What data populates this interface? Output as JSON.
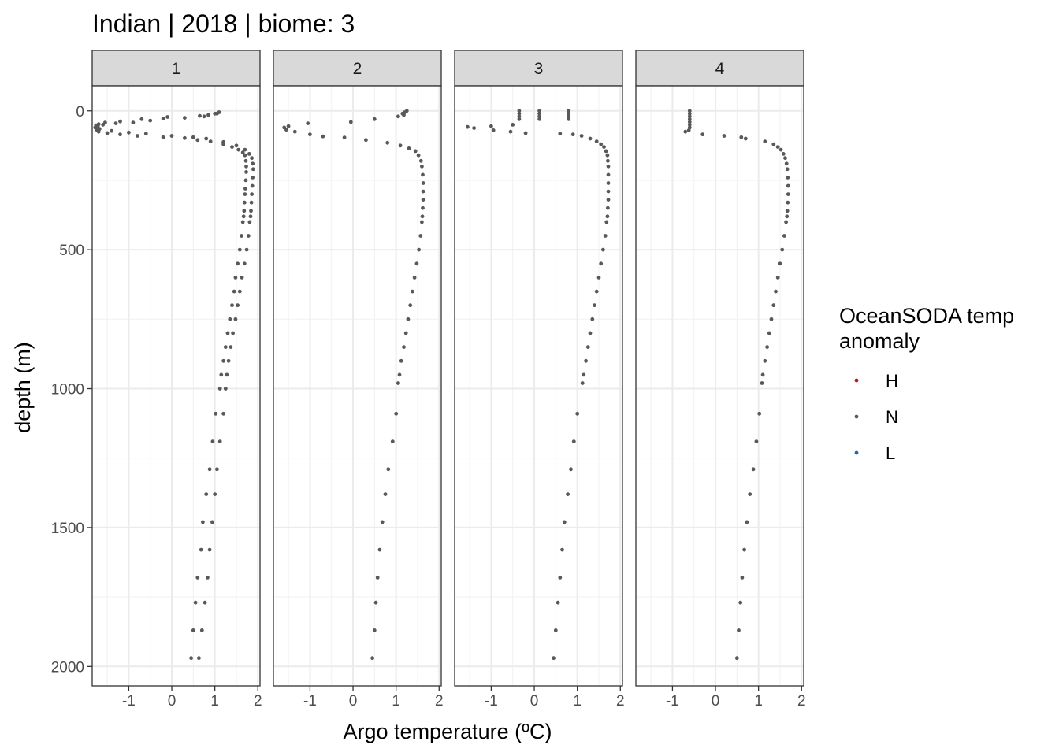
{
  "chart_data": {
    "type": "scatter",
    "title": "Indian | 2018 | biome: 3",
    "xlabel": "Argo temperature (ºC)",
    "ylabel": "depth (m)",
    "xlim": [
      -1.85,
      2.05
    ],
    "ylim": [
      2070,
      -90
    ],
    "y_reversed": true,
    "x_ticks": [
      -1,
      0,
      1,
      2
    ],
    "x_tick_labels": [
      "-1",
      "0",
      "1",
      "2"
    ],
    "y_ticks": [
      0,
      500,
      1000,
      1500,
      2000
    ],
    "y_tick_labels": [
      "0",
      "500",
      "1000",
      "1500",
      "2000"
    ],
    "grid": true,
    "legend": {
      "title_lines": [
        "OceanSODA temp",
        "anomaly"
      ],
      "placement": "right",
      "entries": [
        {
          "label": "H",
          "color": "#b2182b"
        },
        {
          "label": "N",
          "color": "#595959"
        },
        {
          "label": "L",
          "color": "#2166ac"
        }
      ]
    },
    "point_color": "#595959",
    "facets": [
      {
        "label": "1",
        "profiles": [
          [
            [
              1.05,
              10
            ],
            [
              0.85,
              15
            ],
            [
              0.75,
              20
            ],
            [
              0.3,
              25
            ],
            [
              -0.2,
              28
            ],
            [
              -0.5,
              35
            ],
            [
              -0.9,
              42
            ],
            [
              -1.3,
              45
            ],
            [
              -1.6,
              50
            ],
            [
              -1.72,
              55
            ],
            [
              -1.78,
              60
            ],
            [
              -1.75,
              68
            ],
            [
              -1.7,
              75
            ],
            [
              -1.5,
              80
            ],
            [
              -1.2,
              85
            ],
            [
              -0.8,
              90
            ],
            [
              -0.2,
              95
            ],
            [
              0.3,
              98
            ],
            [
              0.6,
              105
            ],
            [
              0.9,
              110
            ],
            [
              1.2,
              120
            ],
            [
              1.4,
              130
            ],
            [
              1.55,
              140
            ],
            [
              1.65,
              150
            ],
            [
              1.7,
              160
            ],
            [
              1.72,
              180
            ],
            [
              1.73,
              200
            ],
            [
              1.73,
              220
            ],
            [
              1.72,
              250
            ],
            [
              1.71,
              280
            ],
            [
              1.7,
              300
            ],
            [
              1.69,
              330
            ],
            [
              1.68,
              360
            ],
            [
              1.67,
              380
            ],
            [
              1.65,
              400
            ],
            [
              1.62,
              450
            ],
            [
              1.58,
              500
            ],
            [
              1.53,
              550
            ],
            [
              1.48,
              600
            ],
            [
              1.45,
              650
            ],
            [
              1.4,
              700
            ],
            [
              1.35,
              750
            ],
            [
              1.3,
              800
            ],
            [
              1.25,
              850
            ],
            [
              1.2,
              900
            ],
            [
              1.15,
              950
            ],
            [
              1.12,
              1000
            ],
            [
              1.02,
              1090
            ],
            [
              0.95,
              1190
            ],
            [
              0.88,
              1290
            ],
            [
              0.8,
              1380
            ],
            [
              0.72,
              1480
            ],
            [
              0.68,
              1580
            ],
            [
              0.6,
              1680
            ],
            [
              0.55,
              1770
            ],
            [
              0.5,
              1870
            ],
            [
              0.45,
              1970
            ]
          ],
          [
            [
              1.1,
              5
            ],
            [
              1.0,
              10
            ],
            [
              0.65,
              18
            ],
            [
              -0.1,
              22
            ],
            [
              -0.7,
              30
            ],
            [
              -1.2,
              38
            ],
            [
              -1.55,
              42
            ],
            [
              -1.7,
              48
            ],
            [
              -1.76,
              52
            ],
            [
              -1.74,
              58
            ],
            [
              -1.68,
              65
            ],
            [
              -1.4,
              72
            ],
            [
              -1.0,
              78
            ],
            [
              -0.6,
              82
            ],
            [
              0.0,
              90
            ],
            [
              0.5,
              95
            ],
            [
              0.8,
              100
            ],
            [
              1.2,
              112
            ],
            [
              1.5,
              125
            ],
            [
              1.7,
              140
            ],
            [
              1.8,
              155
            ],
            [
              1.86,
              170
            ],
            [
              1.88,
              190
            ],
            [
              1.89,
              210
            ],
            [
              1.88,
              240
            ],
            [
              1.87,
              270
            ],
            [
              1.86,
              300
            ],
            [
              1.85,
              330
            ],
            [
              1.84,
              360
            ],
            [
              1.83,
              380
            ],
            [
              1.81,
              400
            ],
            [
              1.78,
              450
            ],
            [
              1.74,
              500
            ],
            [
              1.69,
              550
            ],
            [
              1.63,
              600
            ],
            [
              1.58,
              650
            ],
            [
              1.53,
              700
            ],
            [
              1.48,
              750
            ],
            [
              1.42,
              800
            ],
            [
              1.37,
              850
            ],
            [
              1.32,
              900
            ],
            [
              1.28,
              950
            ],
            [
              1.25,
              1000
            ],
            [
              1.2,
              1090
            ],
            [
              1.12,
              1190
            ],
            [
              1.05,
              1290
            ],
            [
              1.0,
              1380
            ],
            [
              0.94,
              1480
            ],
            [
              0.88,
              1580
            ],
            [
              0.83,
              1680
            ],
            [
              0.77,
              1770
            ],
            [
              0.7,
              1870
            ],
            [
              0.63,
              1970
            ]
          ]
        ]
      },
      {
        "label": "2",
        "profiles": [
          [
            [
              1.25,
              0
            ],
            [
              1.2,
              5
            ],
            [
              1.15,
              10
            ],
            [
              1.18,
              15
            ],
            [
              1.05,
              20
            ],
            [
              0.5,
              30
            ],
            [
              -0.05,
              40
            ],
            [
              -1.05,
              45
            ],
            [
              -1.5,
              55
            ],
            [
              -1.6,
              60
            ],
            [
              -1.55,
              68
            ],
            [
              -1.35,
              75
            ],
            [
              -1.0,
              85
            ],
            [
              -0.7,
              92
            ],
            [
              -0.2,
              96
            ],
            [
              0.3,
              105
            ],
            [
              0.8,
              115
            ],
            [
              1.1,
              125
            ],
            [
              1.3,
              135
            ],
            [
              1.45,
              145
            ],
            [
              1.52,
              160
            ],
            [
              1.58,
              180
            ],
            [
              1.6,
              200
            ],
            [
              1.62,
              230
            ],
            [
              1.63,
              260
            ],
            [
              1.63,
              290
            ],
            [
              1.63,
              320
            ],
            [
              1.62,
              350
            ],
            [
              1.61,
              380
            ],
            [
              1.6,
              400
            ],
            [
              1.57,
              450
            ],
            [
              1.53,
              500
            ],
            [
              1.48,
              550
            ],
            [
              1.43,
              600
            ],
            [
              1.38,
              650
            ],
            [
              1.33,
              700
            ],
            [
              1.28,
              750
            ],
            [
              1.23,
              800
            ],
            [
              1.18,
              850
            ],
            [
              1.12,
              900
            ],
            [
              1.08,
              950
            ],
            [
              1.05,
              980
            ],
            [
              1.0,
              1090
            ],
            [
              0.92,
              1190
            ],
            [
              0.82,
              1290
            ],
            [
              0.75,
              1380
            ],
            [
              0.68,
              1480
            ],
            [
              0.62,
              1580
            ],
            [
              0.57,
              1680
            ],
            [
              0.53,
              1770
            ],
            [
              0.5,
              1870
            ],
            [
              0.45,
              1970
            ]
          ]
        ]
      },
      {
        "label": "3",
        "profiles": [
          [
            [
              -0.35,
              0
            ],
            [
              -0.35,
              10
            ],
            [
              -0.35,
              20
            ],
            [
              -0.35,
              30
            ],
            [
              0.12,
              0
            ],
            [
              0.12,
              10
            ],
            [
              0.12,
              20
            ],
            [
              0.12,
              30
            ],
            [
              0.8,
              0
            ],
            [
              0.8,
              10
            ],
            [
              0.8,
              20
            ],
            [
              0.8,
              30
            ],
            [
              -0.5,
              50
            ],
            [
              -1.0,
              55
            ],
            [
              -1.55,
              58
            ],
            [
              -1.4,
              62
            ],
            [
              -0.95,
              70
            ],
            [
              -0.55,
              75
            ],
            [
              -0.2,
              80
            ],
            [
              0.6,
              82
            ],
            [
              0.9,
              85
            ],
            [
              1.1,
              90
            ],
            [
              1.3,
              100
            ],
            [
              1.45,
              110
            ],
            [
              1.55,
              120
            ],
            [
              1.62,
              130
            ],
            [
              1.67,
              145
            ],
            [
              1.7,
              160
            ],
            [
              1.71,
              180
            ],
            [
              1.72,
              200
            ],
            [
              1.72,
              230
            ],
            [
              1.72,
              260
            ],
            [
              1.72,
              290
            ],
            [
              1.72,
              320
            ],
            [
              1.71,
              350
            ],
            [
              1.7,
              380
            ],
            [
              1.68,
              400
            ],
            [
              1.65,
              450
            ],
            [
              1.6,
              500
            ],
            [
              1.55,
              550
            ],
            [
              1.5,
              600
            ],
            [
              1.45,
              650
            ],
            [
              1.4,
              700
            ],
            [
              1.35,
              750
            ],
            [
              1.3,
              800
            ],
            [
              1.25,
              850
            ],
            [
              1.2,
              900
            ],
            [
              1.15,
              950
            ],
            [
              1.12,
              980
            ],
            [
              1.0,
              1090
            ],
            [
              0.92,
              1190
            ],
            [
              0.85,
              1290
            ],
            [
              0.78,
              1380
            ],
            [
              0.7,
              1480
            ],
            [
              0.65,
              1580
            ],
            [
              0.6,
              1680
            ],
            [
              0.55,
              1770
            ],
            [
              0.5,
              1870
            ],
            [
              0.45,
              1970
            ]
          ]
        ]
      },
      {
        "label": "4",
        "profiles": [
          [
            [
              -0.6,
              0
            ],
            [
              -0.6,
              10
            ],
            [
              -0.6,
              20
            ],
            [
              -0.6,
              30
            ],
            [
              -0.6,
              40
            ],
            [
              -0.6,
              50
            ],
            [
              -0.6,
              60
            ],
            [
              -0.62,
              70
            ],
            [
              -0.7,
              75
            ],
            [
              -0.3,
              85
            ],
            [
              0.2,
              90
            ],
            [
              0.6,
              95
            ],
            [
              0.7,
              100
            ],
            [
              1.15,
              110
            ],
            [
              1.35,
              120
            ],
            [
              1.45,
              130
            ],
            [
              1.52,
              140
            ],
            [
              1.58,
              155
            ],
            [
              1.62,
              170
            ],
            [
              1.65,
              190
            ],
            [
              1.67,
              210
            ],
            [
              1.68,
              240
            ],
            [
              1.69,
              270
            ],
            [
              1.69,
              300
            ],
            [
              1.68,
              330
            ],
            [
              1.67,
              360
            ],
            [
              1.66,
              380
            ],
            [
              1.64,
              400
            ],
            [
              1.6,
              450
            ],
            [
              1.55,
              500
            ],
            [
              1.5,
              550
            ],
            [
              1.45,
              600
            ],
            [
              1.4,
              650
            ],
            [
              1.35,
              700
            ],
            [
              1.3,
              750
            ],
            [
              1.25,
              800
            ],
            [
              1.2,
              850
            ],
            [
              1.15,
              900
            ],
            [
              1.1,
              950
            ],
            [
              1.08,
              980
            ],
            [
              1.02,
              1090
            ],
            [
              0.95,
              1190
            ],
            [
              0.88,
              1290
            ],
            [
              0.8,
              1380
            ],
            [
              0.73,
              1480
            ],
            [
              0.67,
              1580
            ],
            [
              0.62,
              1680
            ],
            [
              0.58,
              1770
            ],
            [
              0.54,
              1870
            ],
            [
              0.5,
              1970
            ]
          ]
        ]
      }
    ]
  }
}
